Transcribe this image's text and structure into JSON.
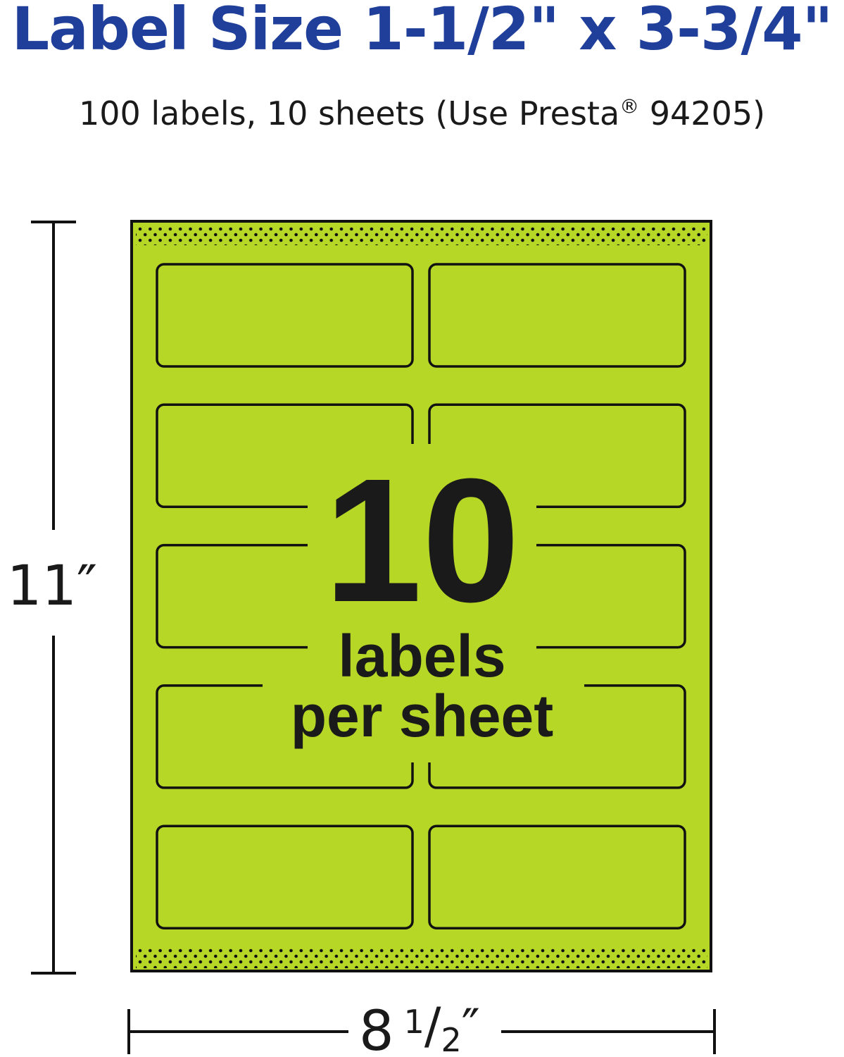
{
  "header": {
    "title": "Label Size 1-1/2\" x 3-3/4\"",
    "subtitle_pre": "100 labels, 10 sheets (Use Presta",
    "subtitle_reg": "®",
    "subtitle_post": " 94205)"
  },
  "sheet": {
    "color": "#b6d726",
    "count": "10",
    "line1": "labels",
    "line2": "per sheet",
    "rows": 5,
    "columns": 2
  },
  "dimensions": {
    "height": "11″",
    "width_whole": "8",
    "width_num": "1",
    "width_den": "2",
    "width_unit": "″"
  }
}
